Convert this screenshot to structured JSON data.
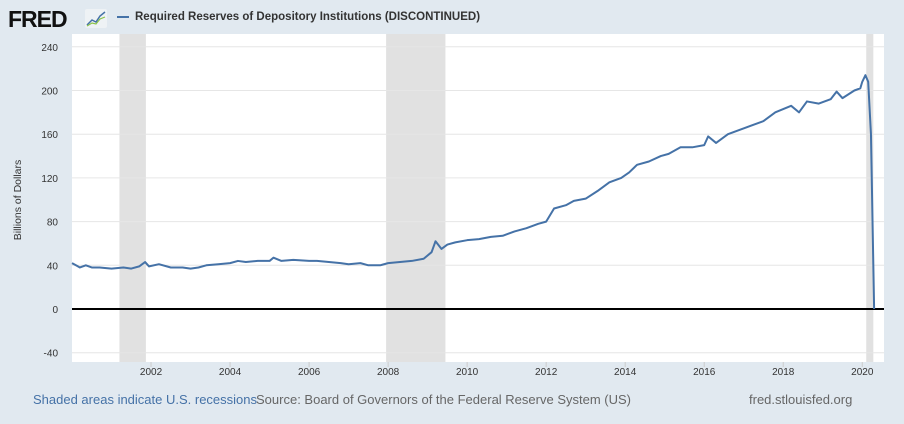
{
  "header": {
    "logo": "FRED",
    "series_label": "Required Reserves of Depository Institutions (DISCONTINUED)"
  },
  "footer": {
    "recessions_link": "Shaded areas indicate U.S. recessions",
    "source": "Source: Board of Governors of the Federal Reserve System (US)",
    "site": "fred.stlouisfed.org"
  },
  "colors": {
    "line": "#4572a7",
    "recession": "#e1e1e1",
    "background": "#e1e9f0"
  },
  "chart_data": {
    "type": "line",
    "title": "Required Reserves of Depository Institutions (DISCONTINUED)",
    "ylabel": "Billions of Dollars",
    "xlabel": "",
    "ylim": [
      -40,
      240
    ],
    "xlim": [
      2000.0,
      2020.55
    ],
    "yticks": [
      "-40",
      "0",
      "40",
      "80",
      "120",
      "160",
      "200",
      "240"
    ],
    "xticks": [
      "2002",
      "2004",
      "2006",
      "2008",
      "2010",
      "2012",
      "2014",
      "2016",
      "2018",
      "2020"
    ],
    "recessions": [
      [
        2001.2,
        2001.87
      ],
      [
        2007.95,
        2009.45
      ],
      [
        2020.1,
        2020.28
      ]
    ],
    "series": [
      {
        "name": "Required Reserves of Depository Institutions (DISCONTINUED)",
        "x": [
          2000.0,
          2000.1,
          2000.2,
          2000.35,
          2000.5,
          2000.7,
          2001.0,
          2001.3,
          2001.5,
          2001.7,
          2001.85,
          2001.95,
          2002.2,
          2002.5,
          2002.8,
          2003.0,
          2003.2,
          2003.4,
          2003.7,
          2004.0,
          2004.2,
          2004.4,
          2004.7,
          2005.0,
          2005.1,
          2005.3,
          2005.6,
          2006.0,
          2006.2,
          2006.5,
          2006.8,
          2007.0,
          2007.3,
          2007.5,
          2007.8,
          2008.0,
          2008.3,
          2008.6,
          2008.9,
          2009.1,
          2009.2,
          2009.35,
          2009.5,
          2009.7,
          2010.0,
          2010.3,
          2010.6,
          2010.9,
          2011.2,
          2011.5,
          2011.8,
          2012.0,
          2012.2,
          2012.5,
          2012.7,
          2013.0,
          2013.3,
          2013.6,
          2013.9,
          2014.1,
          2014.3,
          2014.6,
          2014.9,
          2015.1,
          2015.4,
          2015.7,
          2016.0,
          2016.1,
          2016.3,
          2016.6,
          2016.9,
          2017.2,
          2017.5,
          2017.8,
          2018.0,
          2018.2,
          2018.4,
          2018.6,
          2018.9,
          2019.2,
          2019.35,
          2019.5,
          2019.8,
          2019.95,
          2020.0,
          2020.08,
          2020.15,
          2020.22,
          2020.3
        ],
        "y": [
          42,
          40,
          38,
          40,
          38,
          38,
          37,
          38,
          37,
          39,
          43,
          39,
          41,
          38,
          38,
          37,
          38,
          40,
          41,
          42,
          44,
          43,
          44,
          44,
          47,
          44,
          45,
          44,
          44,
          43,
          42,
          41,
          42,
          40,
          40,
          42,
          43,
          44,
          46,
          52,
          62,
          55,
          59,
          61,
          63,
          64,
          66,
          67,
          71,
          74,
          78,
          80,
          92,
          95,
          99,
          101,
          108,
          116,
          120,
          125,
          132,
          135,
          140,
          142,
          148,
          148,
          150,
          158,
          152,
          160,
          164,
          168,
          172,
          180,
          183,
          186,
          180,
          190,
          188,
          192,
          199,
          193,
          200,
          202,
          208,
          214,
          208,
          160,
          0
        ]
      }
    ]
  }
}
